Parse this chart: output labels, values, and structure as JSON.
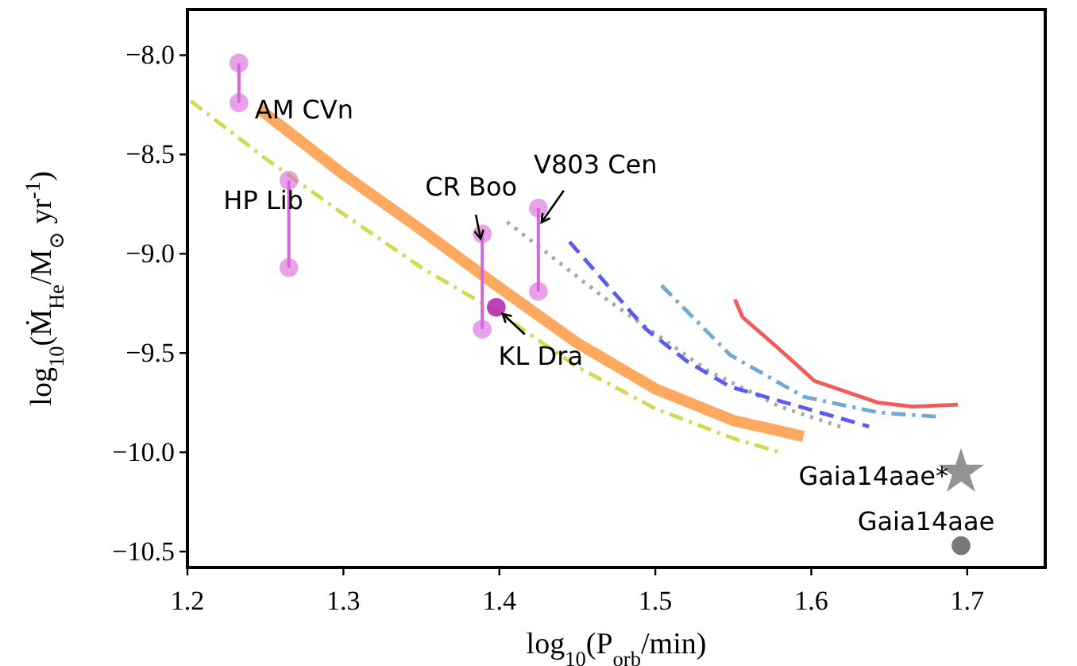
{
  "chart_data": {
    "type": "line",
    "xlabel": "log$_{10}$(P$_{orb}$/min)",
    "ylabel": "log$_{10}$(Ṁ$_{He}$/M$_{⊙}$ yr$^{-1}$)",
    "xlim": [
      1.2,
      1.75
    ],
    "xticks": [
      1.2,
      1.3,
      1.4,
      1.5,
      1.6,
      1.7
    ],
    "ylim": [
      -10.58,
      -7.77
    ],
    "yticks": [
      {
        "value": -8.0,
        "label": "−8.0"
      },
      {
        "value": -8.5,
        "label": "−8.5"
      },
      {
        "value": -9.0,
        "label": "−9.0"
      },
      {
        "value": -9.5,
        "label": "−9.5"
      },
      {
        "value": -10.0,
        "label": "−10.0"
      },
      {
        "value": -10.5,
        "label": "−10.5"
      }
    ],
    "grid": false,
    "series": [
      {
        "color": "#d4d952",
        "line_style": "dashdot",
        "marker": "none",
        "x": [
          1.202,
          1.25,
          1.3,
          1.35,
          1.4,
          1.45,
          1.5,
          1.55,
          1.58
        ],
        "values": [
          -8.23,
          -8.52,
          -8.8,
          -9.07,
          -9.3,
          -9.57,
          -9.78,
          -9.93,
          -10.0
        ]
      },
      {
        "color": "#ffa860",
        "line_style": "solid",
        "marker": "none",
        "x": [
          1.246,
          1.3,
          1.35,
          1.4,
          1.45,
          1.5,
          1.55,
          1.595
        ],
        "values": [
          -8.27,
          -8.6,
          -8.88,
          -9.17,
          -9.45,
          -9.68,
          -9.84,
          -9.92
        ]
      },
      {
        "color": "#a8a8a8",
        "line_style": "dotted",
        "marker": "none",
        "x": [
          1.405,
          1.467,
          1.534,
          1.58,
          1.622
        ],
        "values": [
          -8.84,
          -9.22,
          -9.59,
          -9.77,
          -9.88
        ]
      },
      {
        "color": "#5a5af5",
        "line_style": "dashed",
        "marker": "none",
        "x": [
          1.445,
          1.494,
          1.52,
          1.548,
          1.637
        ],
        "values": [
          -8.94,
          -9.38,
          -9.54,
          -9.67,
          -9.87
        ]
      },
      {
        "color": "#72a9d2",
        "line_style": "dashdot",
        "marker": "none",
        "x": [
          1.504,
          1.548,
          1.595,
          1.643,
          1.68
        ],
        "values": [
          -9.16,
          -9.51,
          -9.72,
          -9.8,
          -9.82
        ]
      },
      {
        "color": "#f55a5a",
        "line_style": "solid",
        "marker": "none",
        "x": [
          1.551,
          1.556,
          1.578,
          1.602,
          1.643,
          1.665,
          1.694
        ],
        "values": [
          -9.23,
          -9.32,
          -9.47,
          -9.64,
          -9.75,
          -9.77,
          -9.76
        ]
      },
      {
        "type": "line",
        "color": "#d866d8",
        "line_style": "solid",
        "marker": "circle",
        "x": [
          1.233,
          1.233
        ],
        "values": [
          -8.04,
          -8.24
        ]
      },
      {
        "type": "line",
        "color": "#d866d8",
        "line_style": "solid",
        "marker": "circle",
        "x": [
          1.265,
          1.265
        ],
        "values": [
          -8.63,
          -9.07
        ]
      },
      {
        "type": "line",
        "color": "#d866d8",
        "line_style": "solid",
        "marker": "circle",
        "x": [
          1.389,
          1.389
        ],
        "values": [
          -8.9,
          -9.38
        ]
      },
      {
        "type": "line",
        "color": "#d866d8",
        "line_style": "solid",
        "marker": "circle",
        "x": [
          1.425,
          1.425
        ],
        "values": [
          -8.77,
          -9.19
        ]
      },
      {
        "type": "scatter",
        "color": "#b020b0",
        "marker": "circle",
        "x": [
          1.398
        ],
        "values": [
          -9.27
        ]
      },
      {
        "type": "scatter",
        "color": "#808080",
        "marker": "star",
        "x": [
          1.696
        ],
        "values": [
          -10.1
        ]
      },
      {
        "type": "scatter",
        "color": "#606060",
        "marker": "circle",
        "x": [
          1.696
        ],
        "values": [
          -10.47
        ]
      }
    ],
    "annotations": [
      {
        "text": "AM CVn",
        "x": 1.233,
        "y": -8.24
      },
      {
        "text": "HP Lib",
        "x": 1.265,
        "y": -8.63
      },
      {
        "text": "CR Boo",
        "x": 1.389,
        "y": -8.9
      },
      {
        "text": "V803 Cen",
        "x": 1.425,
        "y": -8.77
      },
      {
        "text": "KL Dra",
        "x": 1.398,
        "y": -9.27
      },
      {
        "text": "Gaia14aae*",
        "x": 1.696,
        "y": -10.1
      },
      {
        "text": "Gaia14aae",
        "x": 1.696,
        "y": -10.47
      }
    ]
  }
}
